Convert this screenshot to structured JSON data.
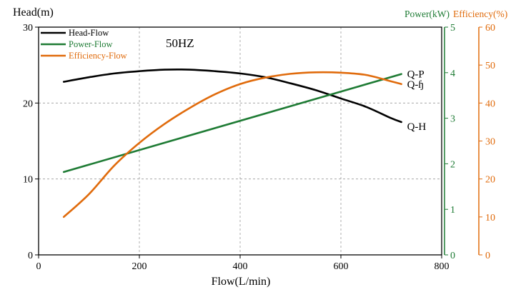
{
  "chart_data": {
    "type": "line",
    "annotation": "50HZ",
    "xlabel": "Flow(L/min)",
    "xlim": [
      0,
      800
    ],
    "x_ticks": [
      0,
      200,
      400,
      600,
      800
    ],
    "grid": true,
    "legend_placement": "top-left",
    "axes": {
      "head": {
        "label": "Head(m)",
        "range": [
          0,
          30
        ],
        "ticks": [
          0,
          10,
          20,
          30
        ],
        "color": "#000000"
      },
      "power": {
        "label": "Power(kW)",
        "range": [
          0,
          5
        ],
        "ticks": [
          0,
          1,
          2,
          3,
          4,
          5
        ],
        "color": "#1e7b34"
      },
      "efficiency": {
        "label": "Efficiency(%)",
        "range": [
          0,
          60
        ],
        "ticks": [
          0,
          10,
          20,
          30,
          40,
          50,
          60
        ],
        "color": "#e06b0c"
      }
    },
    "series": [
      {
        "name": "Head-Flow",
        "end_label": "Q-H",
        "axis": "head",
        "color": "#000000",
        "x": [
          50,
          100,
          150,
          200,
          250,
          300,
          350,
          400,
          450,
          500,
          550,
          600,
          650,
          700,
          720
        ],
        "y": [
          22.8,
          23.4,
          23.9,
          24.2,
          24.4,
          24.4,
          24.2,
          23.9,
          23.4,
          22.6,
          21.7,
          20.6,
          19.5,
          18.0,
          17.5
        ]
      },
      {
        "name": "Power-Flow",
        "end_label": "Q-P",
        "axis": "power",
        "color": "#1e7b34",
        "x": [
          50,
          720
        ],
        "y": [
          1.82,
          3.97
        ]
      },
      {
        "name": "Efficiency-Flow",
        "end_label": "Q-ɧ",
        "axis": "efficiency",
        "color": "#e06b0c",
        "x": [
          50,
          100,
          150,
          200,
          250,
          300,
          350,
          400,
          450,
          500,
          550,
          600,
          650,
          700,
          720
        ],
        "y": [
          10,
          16,
          23.5,
          29.5,
          34.5,
          38.7,
          42.3,
          45.0,
          46.7,
          47.7,
          48.1,
          48.0,
          47.4,
          45.7,
          45.0
        ]
      }
    ]
  }
}
